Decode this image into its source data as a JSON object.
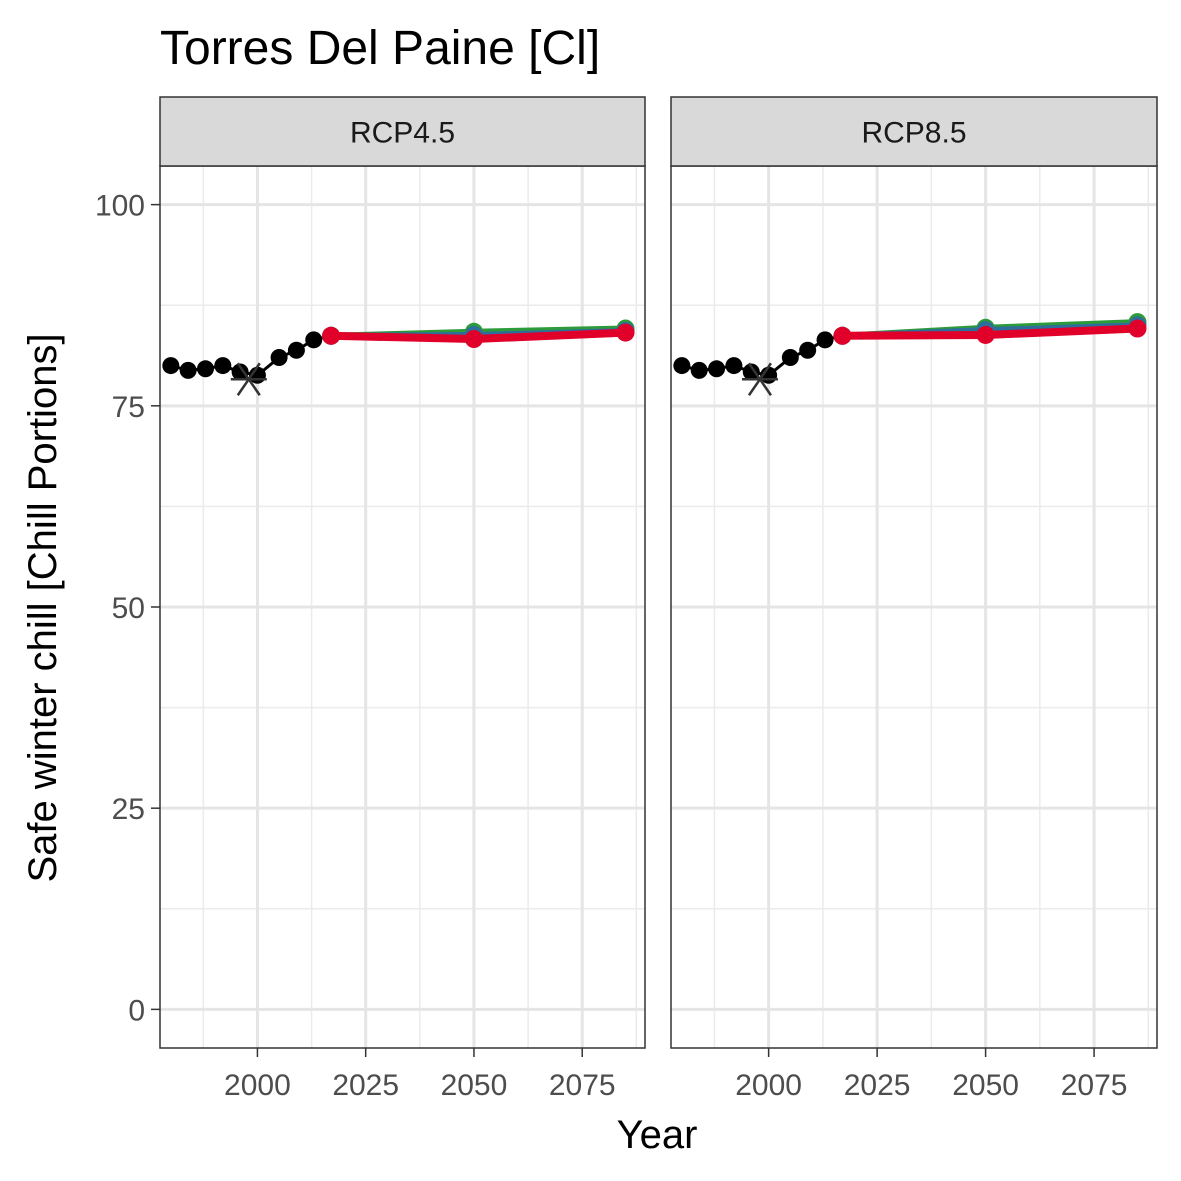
{
  "chart_data": {
    "type": "line",
    "title": "Torres Del Paine [Cl]",
    "xlabel": "Year",
    "ylabel": "Safe winter chill [Chill Portions]",
    "xlim": [
      1977.5,
      2089.5
    ],
    "ylim": [
      -4.8,
      104.8
    ],
    "x_ticks": [
      2000,
      2025,
      2050,
      2075
    ],
    "x_tick_labels": [
      "2000",
      "2025",
      "2050",
      "2075"
    ],
    "y_ticks": [
      0,
      25,
      50,
      75,
      100
    ],
    "y_tick_labels": [
      "0",
      "25",
      "50",
      "75",
      "100"
    ],
    "grid": true,
    "legend": "none",
    "colors": {
      "historic": "#000000",
      "baseline_marker": "#333333",
      "future_series": [
        "#2e9b3a",
        "#2c6e9c",
        "#e0002a"
      ]
    },
    "panels": [
      {
        "strip": "RCP4.5",
        "historic": {
          "x": [
            1980,
            1984,
            1988,
            1992,
            1996,
            2000,
            2005,
            2009,
            2013,
            2017
          ],
          "y": [
            80.0,
            79.4,
            79.6,
            80.0,
            79.2,
            78.8,
            81.0,
            81.9,
            83.2,
            83.7
          ]
        },
        "baseline": {
          "x": 1998,
          "y": 78.3
        },
        "series": [
          {
            "x": [
              2017,
              2050,
              2085
            ],
            "y": [
              83.7,
              84.2,
              84.6
            ]
          },
          {
            "x": [
              2017,
              2050,
              2085
            ],
            "y": [
              83.7,
              83.8,
              84.3
            ]
          },
          {
            "x": [
              2017,
              2050,
              2085
            ],
            "y": [
              83.7,
              83.3,
              84.1
            ]
          }
        ]
      },
      {
        "strip": "RCP8.5",
        "historic": {
          "x": [
            1980,
            1984,
            1988,
            1992,
            1996,
            2000,
            2005,
            2009,
            2013,
            2017
          ],
          "y": [
            80.0,
            79.4,
            79.6,
            80.0,
            79.2,
            78.8,
            81.0,
            81.9,
            83.2,
            83.7
          ]
        },
        "baseline": {
          "x": 1998,
          "y": 78.3
        },
        "series": [
          {
            "x": [
              2017,
              2050,
              2085
            ],
            "y": [
              83.7,
              84.7,
              85.4
            ]
          },
          {
            "x": [
              2017,
              2050,
              2085
            ],
            "y": [
              83.7,
              84.4,
              85.0
            ]
          },
          {
            "x": [
              2017,
              2050,
              2085
            ],
            "y": [
              83.7,
              83.8,
              84.6
            ]
          }
        ]
      }
    ]
  }
}
